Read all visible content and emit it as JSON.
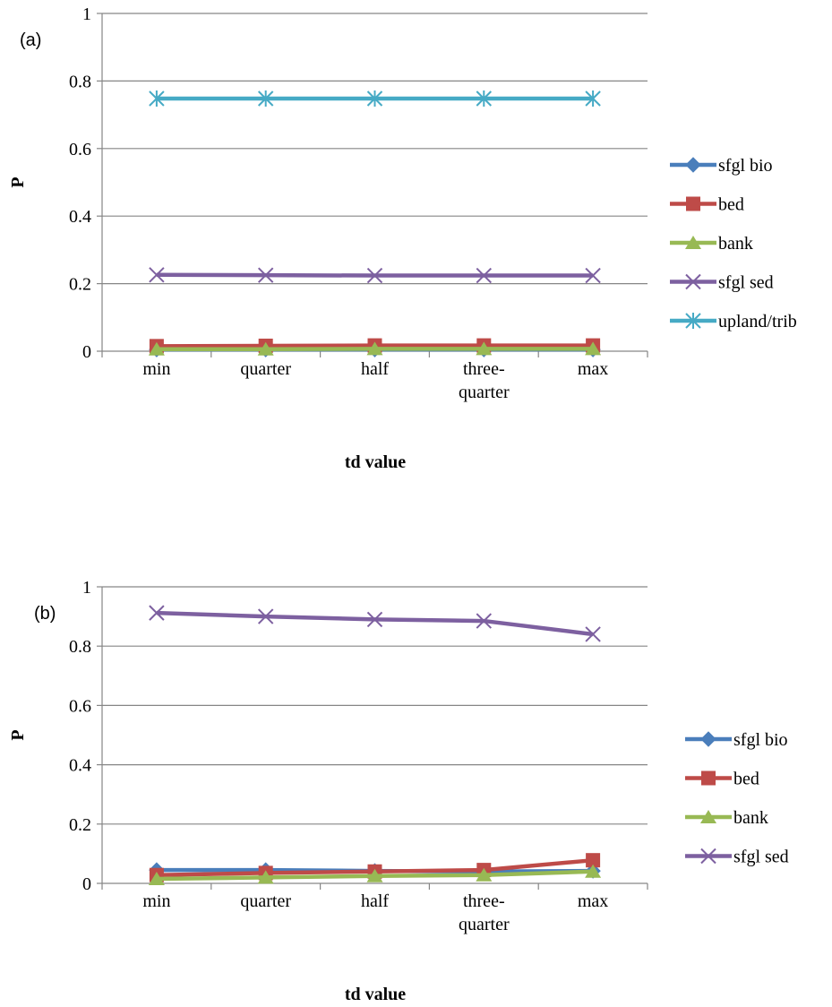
{
  "chart_data": [
    {
      "type": "line",
      "panel_label": "(a)",
      "categories": [
        "min",
        "quarter",
        "half",
        "three-\nquarter",
        "max"
      ],
      "ylim": [
        0,
        1
      ],
      "yticks": [
        "0",
        "0.2",
        "0.4",
        "0.6",
        "0.8",
        "1"
      ],
      "xlabel": "td value",
      "ylabel": "P",
      "grid": true,
      "legend_position": "right",
      "series": [
        {
          "name": "sfgl bio",
          "color": "#4A7EBB",
          "marker": "diamond",
          "values": [
            0.005,
            0.005,
            0.005,
            0.005,
            0.005
          ]
        },
        {
          "name": "bed",
          "color": "#BE4B48",
          "marker": "square",
          "values": [
            0.015,
            0.016,
            0.017,
            0.017,
            0.017
          ]
        },
        {
          "name": "bank",
          "color": "#98B954",
          "marker": "triangle",
          "values": [
            0.006,
            0.006,
            0.007,
            0.007,
            0.007
          ]
        },
        {
          "name": "sfgl sed",
          "color": "#7D60A0",
          "marker": "x",
          "values": [
            0.226,
            0.225,
            0.224,
            0.224,
            0.224
          ]
        },
        {
          "name": "upland/trib",
          "color": "#46AAC5",
          "marker": "star",
          "values": [
            0.748,
            0.748,
            0.748,
            0.748,
            0.748
          ]
        }
      ]
    },
    {
      "type": "line",
      "panel_label": "(b)",
      "categories": [
        "min",
        "quarter",
        "half",
        "three-\nquarter",
        "max"
      ],
      "ylim": [
        0,
        1
      ],
      "yticks": [
        "0",
        "0.2",
        "0.4",
        "0.6",
        "0.8",
        "1"
      ],
      "xlabel": "td value",
      "ylabel": "P",
      "grid": true,
      "legend_position": "right",
      "series": [
        {
          "name": "sfgl bio",
          "color": "#4A7EBB",
          "marker": "diamond",
          "values": [
            0.045,
            0.045,
            0.042,
            0.04,
            0.042
          ]
        },
        {
          "name": "bed",
          "color": "#BE4B48",
          "marker": "square",
          "values": [
            0.028,
            0.035,
            0.04,
            0.045,
            0.078
          ]
        },
        {
          "name": "bank",
          "color": "#98B954",
          "marker": "triangle",
          "values": [
            0.015,
            0.02,
            0.025,
            0.028,
            0.04
          ]
        },
        {
          "name": "sfgl sed",
          "color": "#7D60A0",
          "marker": "x",
          "values": [
            0.912,
            0.9,
            0.89,
            0.885,
            0.84
          ]
        }
      ]
    }
  ]
}
